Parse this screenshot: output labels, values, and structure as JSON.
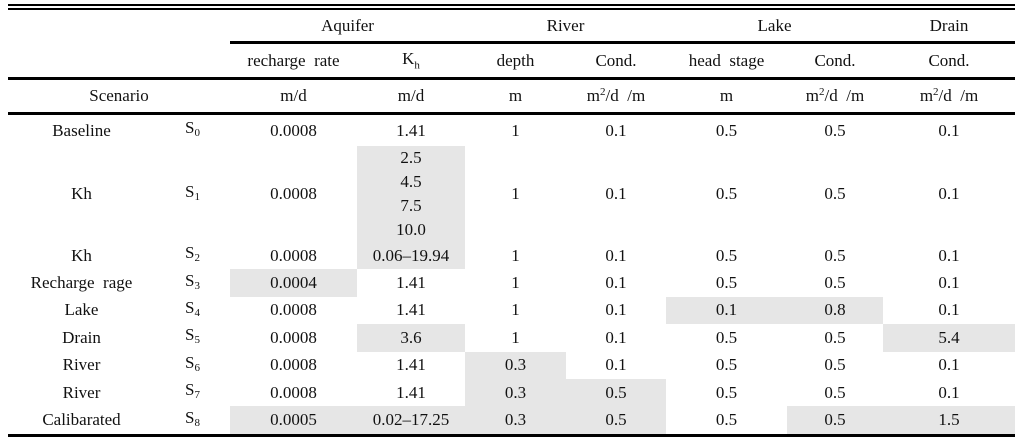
{
  "header": {
    "groups": {
      "aquifer": "Aquifer",
      "river": "River",
      "lake": "Lake",
      "drain": "Drain"
    },
    "params": {
      "recharge": "recharge  rate",
      "kh_base": "K",
      "kh_sub": "h",
      "depth": "depth",
      "river_cond": "Cond.",
      "head_stage": "head  stage",
      "lake_cond": "Cond.",
      "drain_cond": "Cond."
    },
    "scenario_label": "Scenario",
    "units": {
      "recharge": "m/d",
      "kh": "m/d",
      "depth": "m",
      "river_cond_a": "m",
      "river_cond_sup": "2",
      "river_cond_b": "/d  /m",
      "head_stage": "m",
      "lake_cond_a": "m",
      "lake_cond_sup": "2",
      "lake_cond_b": "/d  /m",
      "drain_cond_a": "m",
      "drain_cond_sup": "2",
      "drain_cond_b": "/d  /m"
    }
  },
  "columns": [
    "recharge",
    "kh",
    "depth",
    "river_cond",
    "head_stage",
    "lake_cond",
    "drain_cond"
  ],
  "rows": [
    {
      "name": "Baseline",
      "id": "S",
      "id_sub": "0",
      "values": [
        "0.0008",
        "1.41",
        "1",
        "0.1",
        "0.5",
        "0.5",
        "0.1"
      ],
      "highlighted": []
    },
    {
      "name": "Kh",
      "id": "S",
      "id_sub": "1",
      "values": [
        "0.0008",
        [
          "2.5",
          "4.5",
          "7.5",
          "10.0"
        ],
        "1",
        "0.1",
        "0.5",
        "0.5",
        "0.1"
      ],
      "highlighted": [
        "kh"
      ]
    },
    {
      "name": "Kh",
      "id": "S",
      "id_sub": "2",
      "values": [
        "0.0008",
        "0.06–19.94",
        "1",
        "0.1",
        "0.5",
        "0.5",
        "0.1"
      ],
      "highlighted": [
        "kh"
      ]
    },
    {
      "name": "Recharge  rage",
      "id": "S",
      "id_sub": "3",
      "values": [
        "0.0004",
        "1.41",
        "1",
        "0.1",
        "0.5",
        "0.5",
        "0.1"
      ],
      "highlighted": [
        "recharge"
      ]
    },
    {
      "name": "Lake",
      "id": "S",
      "id_sub": "4",
      "values": [
        "0.0008",
        "1.41",
        "1",
        "0.1",
        "0.1",
        "0.8",
        "0.1"
      ],
      "highlighted": [
        "head_stage",
        "lake_cond"
      ]
    },
    {
      "name": "Drain",
      "id": "S",
      "id_sub": "5",
      "values": [
        "0.0008",
        "3.6",
        "1",
        "0.1",
        "0.5",
        "0.5",
        "5.4"
      ],
      "highlighted": [
        "kh",
        "drain_cond"
      ]
    },
    {
      "name": "River",
      "id": "S",
      "id_sub": "6",
      "values": [
        "0.0008",
        "1.41",
        "0.3",
        "0.1",
        "0.5",
        "0.5",
        "0.1"
      ],
      "highlighted": [
        "depth"
      ]
    },
    {
      "name": "River",
      "id": "S",
      "id_sub": "7",
      "values": [
        "0.0008",
        "1.41",
        "0.3",
        "0.5",
        "0.5",
        "0.5",
        "0.1"
      ],
      "highlighted": [
        "depth",
        "river_cond"
      ]
    },
    {
      "name": "Calibarated",
      "id": "S",
      "id_sub": "8",
      "values": [
        "0.0005",
        "0.02–17.25",
        "0.3",
        "0.5",
        "0.5",
        "0.5",
        "1.5"
      ],
      "highlighted": [
        "recharge",
        "kh",
        "depth",
        "river_cond",
        "lake_cond",
        "drain_cond"
      ]
    }
  ]
}
